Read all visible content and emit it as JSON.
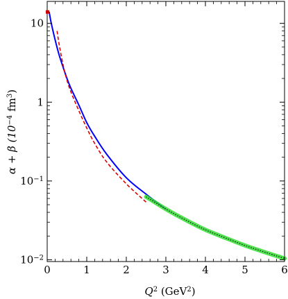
{
  "chart_data": {
    "type": "line",
    "xlabel_main": "Q",
    "xlabel_sup": "2",
    "xlabel_unit": " (GeV",
    "xlabel_unit_sup": "2",
    "xlabel_close": ")",
    "ylabel_main": "α + β (10",
    "ylabel_sup1": "−4",
    "ylabel_mid": " fm",
    "ylabel_sup2": "3",
    "ylabel_close": ")",
    "x_scale": "linear",
    "y_scale": "log",
    "xlim": [
      0,
      6
    ],
    "ylim": [
      0.0095,
      19
    ],
    "x_ticks": [
      "0",
      "1",
      "2",
      "3",
      "4",
      "5",
      "6"
    ],
    "y_ticks": [
      {
        "value": 10,
        "label_main": "10",
        "label_sup": ""
      },
      {
        "value": 1,
        "label_main": "1",
        "label_sup": ""
      },
      {
        "value": 0.1,
        "label_main": "10",
        "label_sup": "−1"
      },
      {
        "value": 0.01,
        "label_main": "10",
        "label_sup": "−2"
      }
    ],
    "series": [
      {
        "style": "solid",
        "color": "#0000ff",
        "x": [
          0.05,
          0.1,
          0.2,
          0.3,
          0.4,
          0.5,
          0.6,
          0.8,
          1.0,
          1.2,
          1.5,
          2.0,
          2.5,
          3.0
        ],
        "y": [
          14.0,
          10.2,
          6.2,
          4.0,
          2.8,
          2.0,
          1.5,
          0.92,
          0.55,
          0.37,
          0.22,
          0.11,
          0.068,
          0.044
        ]
      },
      {
        "style": "dashed",
        "color": "#dd0000",
        "x": [
          0.25,
          0.3,
          0.4,
          0.5,
          0.6,
          0.8,
          1.0,
          1.2,
          1.5,
          2.0,
          2.5
        ],
        "y": [
          8.0,
          5.5,
          3.0,
          1.9,
          1.35,
          0.78,
          0.47,
          0.3,
          0.175,
          0.092,
          0.054
        ]
      },
      {
        "style": "band",
        "color": "#33dd33",
        "x": [
          2.5,
          3.0,
          3.5,
          4.0,
          4.5,
          5.0,
          5.5,
          6.0
        ],
        "y": [
          0.063,
          0.044,
          0.032,
          0.024,
          0.019,
          0.0152,
          0.0125,
          0.0104
        ]
      },
      {
        "style": "dotted",
        "color": "#000000",
        "x": [
          2.5,
          3.0,
          3.5,
          4.0,
          4.5,
          5.0,
          5.5,
          6.0
        ],
        "y": [
          0.063,
          0.044,
          0.032,
          0.024,
          0.019,
          0.0152,
          0.0125,
          0.0104
        ]
      }
    ],
    "points": [
      {
        "x": 0.0,
        "y": 13.8,
        "color": "#cc0000"
      }
    ]
  }
}
